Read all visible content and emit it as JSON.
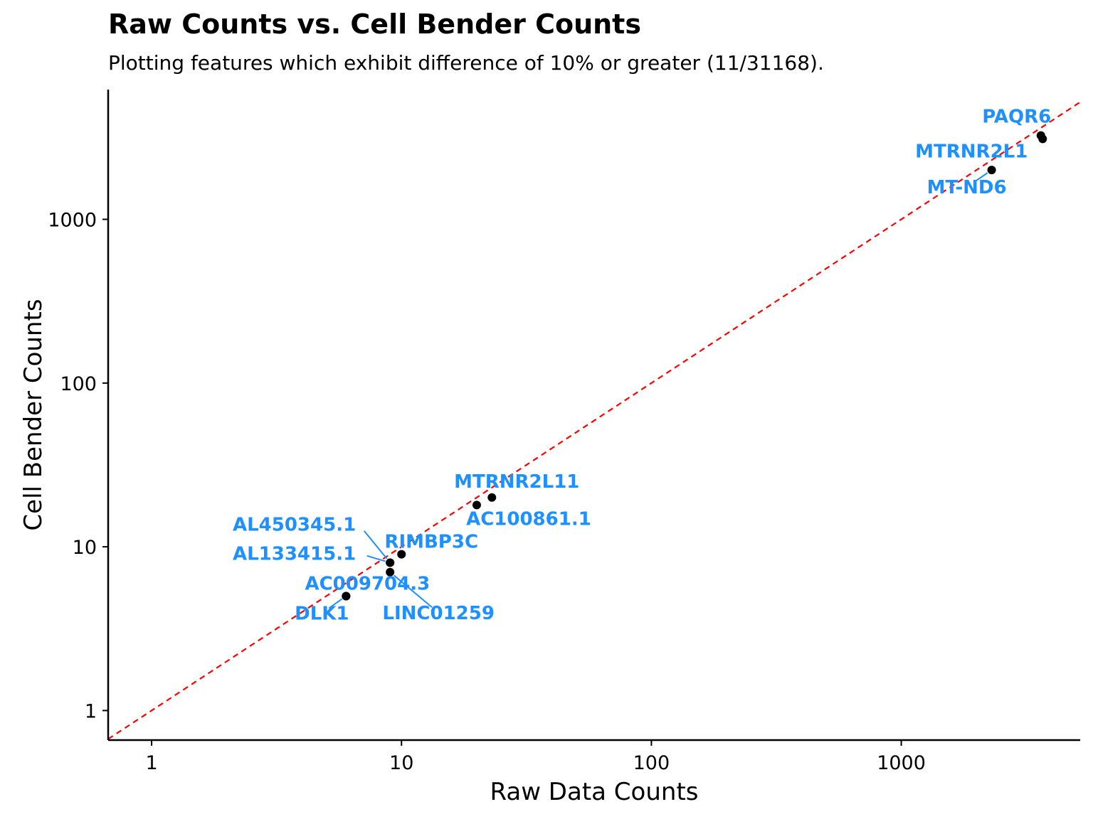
{
  "colors": {
    "points": "#000000",
    "labels": "#1E90FF",
    "reference_line": "#FF0000"
  },
  "chart_data": {
    "type": "scatter",
    "title": "Raw Counts vs. Cell Bender Counts",
    "subtitle": "Plotting features which exhibit difference of 10% or greater (11/31168).",
    "xlabel": "Raw Data Counts",
    "ylabel": "Cell Bender Counts",
    "x_scale": "log10",
    "y_scale": "log10",
    "xlim": [
      0.67,
      5200
    ],
    "ylim": [
      0.66,
      6200
    ],
    "x_ticks": [
      1,
      10,
      100,
      1000
    ],
    "y_ticks": [
      1,
      10,
      100,
      1000
    ],
    "x_tick_labels": [
      "1",
      "10",
      "100",
      "1000"
    ],
    "y_tick_labels": [
      "1",
      "10",
      "100",
      "1000"
    ],
    "reference_line": {
      "type": "identity",
      "style": "dashed"
    },
    "grid": false,
    "points": [
      {
        "label": "PAQR6",
        "x": 3620,
        "y": 3250
      },
      {
        "label": "MTRNR2L1",
        "x": 3680,
        "y": 3100
      },
      {
        "label": "MT-ND6",
        "x": 2300,
        "y": 2000
      },
      {
        "label": "MTRNR2L11",
        "x": 23,
        "y": 20
      },
      {
        "label": "AC100861.1",
        "x": 20,
        "y": 18
      },
      {
        "label": "RIMBP3C",
        "x": 10,
        "y": 9
      },
      {
        "label": "AL450345.1",
        "x": 9,
        "y": 8
      },
      {
        "label": "AL133415.1",
        "x": 9,
        "y": 8
      },
      {
        "label": "LINC01259",
        "x": 9,
        "y": 7
      },
      {
        "label": "AC009704.3",
        "x": 6,
        "y": 5
      },
      {
        "label": "DLK1",
        "x": 6,
        "y": 5
      }
    ]
  }
}
